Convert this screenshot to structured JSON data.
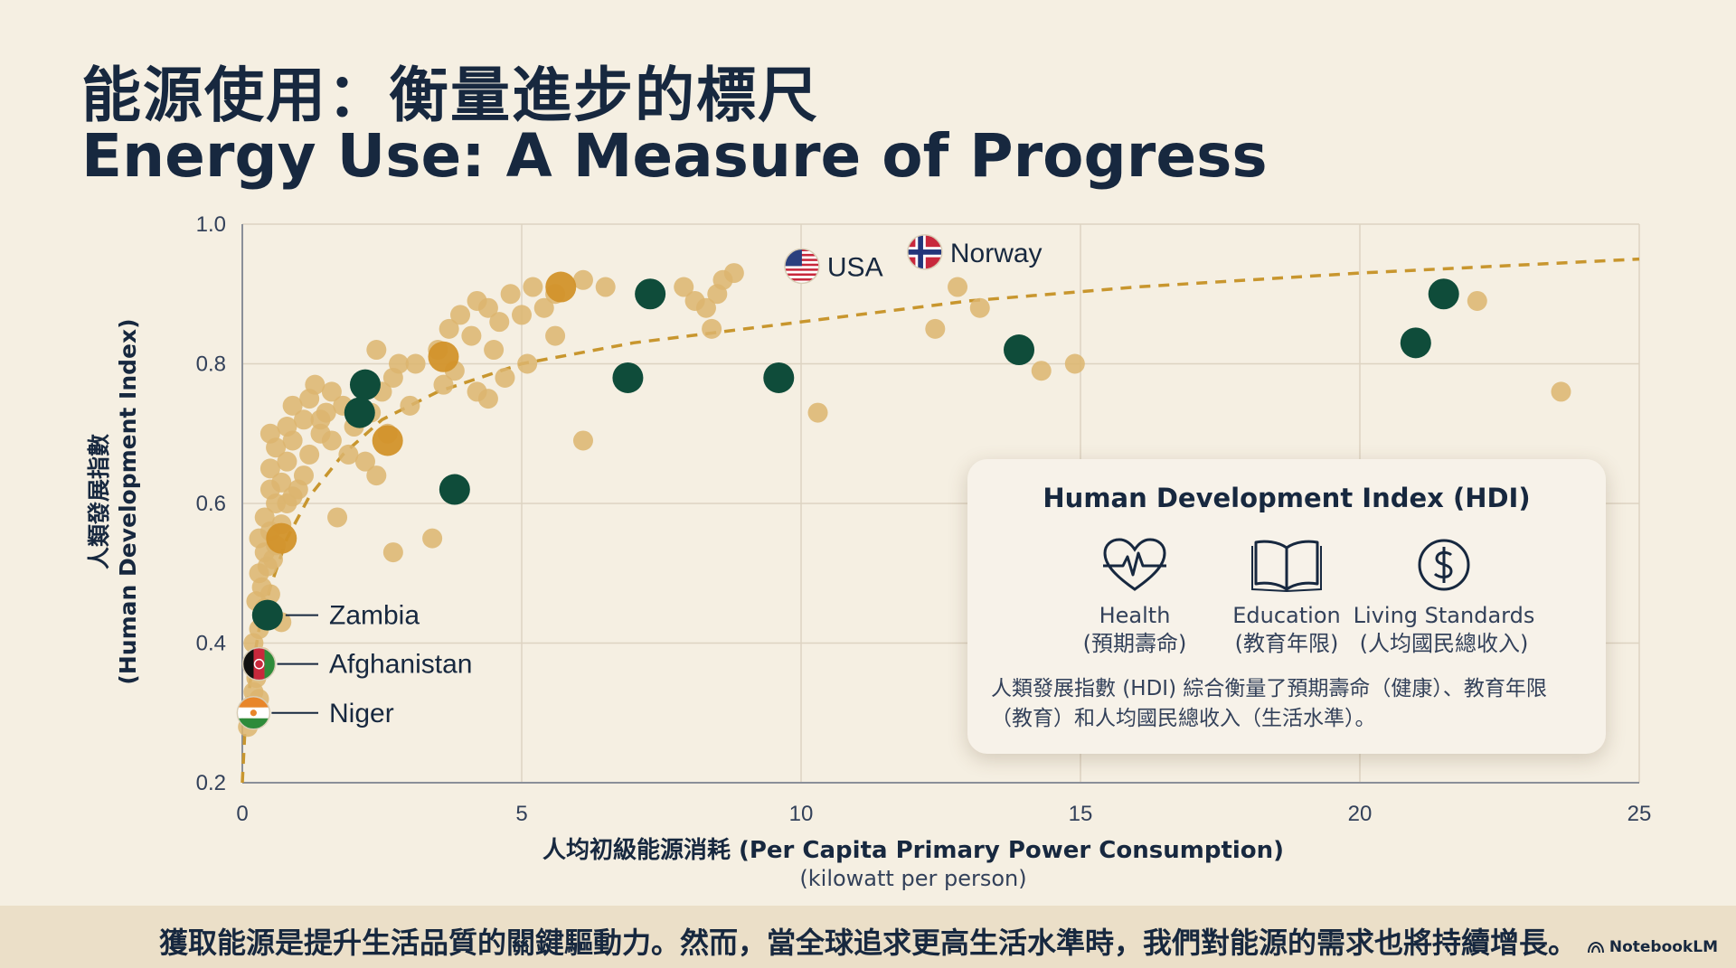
{
  "title": {
    "zh": "能源使用：衡量進步的標尺",
    "en": "Energy Use: A Measure of Progress"
  },
  "axes": {
    "xlabel": "人均初級能源消耗 (Per Capita Primary Power Consumption)",
    "xunit": "(kilowatt per person)",
    "ylabel_zh": "人類發展指數",
    "ylabel_en": "(Human Development Index)"
  },
  "hdi_box": {
    "title": "Human Development Index (HDI)",
    "items": [
      {
        "icon": "heart-pulse-icon",
        "label_en": "Health",
        "label_zh": "(預期壽命)"
      },
      {
        "icon": "book-icon",
        "label_en": "Education",
        "label_zh": "(教育年限)"
      },
      {
        "icon": "dollar-coin-icon",
        "label_en": "Living Standards",
        "label_zh": "(人均國民總收入)"
      }
    ],
    "description_line1": "人類發展指數 (HDI) 綜合衡量了預期壽命（健康）、教育年限",
    "description_line2": "（教育）和人均國民總收入（生活水準）。"
  },
  "footer": {
    "text": "獲取能源是提升生活品質的關鍵驅動力。然而，當全球追求更高生活水準時，我們對能源的需求也將持續增長。",
    "brand": "NotebookLM"
  },
  "colors": {
    "background": "#f5efe2",
    "point_light": "#dcb56f",
    "point_orange": "#d2922a",
    "point_green": "#0f4c3a",
    "trend": "#c8962e",
    "text": "#17283f",
    "footer_bg": "#ebdfc8"
  },
  "chart_data": {
    "type": "scatter",
    "title": "Energy Use: A Measure of Progress",
    "xlabel": "人均初級能源消耗 (Per Capita Primary Power Consumption)",
    "ylabel": "人類發展指數 (Human Development Index)",
    "xlim": [
      0,
      25
    ],
    "ylim": [
      0.2,
      1.0
    ],
    "xticks": [
      0,
      5,
      10,
      15,
      20,
      25
    ],
    "yticks": [
      0.2,
      0.4,
      0.6,
      0.8,
      1.0
    ],
    "yticklabels": [
      "0.2",
      "0.4",
      "0.6",
      "0.8",
      "1.0"
    ],
    "grid": true,
    "series": [
      {
        "name": "countries",
        "points": [
          [
            0.1,
            0.28
          ],
          [
            0.15,
            0.31
          ],
          [
            0.2,
            0.33
          ],
          [
            0.25,
            0.35
          ],
          [
            0.3,
            0.32
          ],
          [
            0.35,
            0.38
          ],
          [
            0.2,
            0.4
          ],
          [
            0.3,
            0.42
          ],
          [
            0.4,
            0.45
          ],
          [
            0.25,
            0.46
          ],
          [
            0.35,
            0.48
          ],
          [
            0.5,
            0.47
          ],
          [
            0.3,
            0.5
          ],
          [
            0.45,
            0.51
          ],
          [
            0.55,
            0.52
          ],
          [
            0.4,
            0.53
          ],
          [
            0.6,
            0.54
          ],
          [
            0.3,
            0.55
          ],
          [
            0.5,
            0.56
          ],
          [
            0.7,
            0.57
          ],
          [
            0.4,
            0.58
          ],
          [
            0.6,
            0.6
          ],
          [
            0.8,
            0.6
          ],
          [
            0.5,
            0.62
          ],
          [
            0.9,
            0.61
          ],
          [
            0.7,
            0.63
          ],
          [
            1.0,
            0.62
          ],
          [
            0.5,
            0.65
          ],
          [
            0.8,
            0.66
          ],
          [
            1.1,
            0.64
          ],
          [
            0.6,
            0.68
          ],
          [
            0.9,
            0.69
          ],
          [
            1.2,
            0.67
          ],
          [
            0.5,
            0.7
          ],
          [
            0.8,
            0.71
          ],
          [
            1.1,
            0.72
          ],
          [
            1.4,
            0.7
          ],
          [
            0.9,
            0.74
          ],
          [
            1.2,
            0.75
          ],
          [
            1.5,
            0.73
          ],
          [
            1.3,
            0.77
          ],
          [
            1.6,
            0.76
          ],
          [
            1.8,
            0.74
          ],
          [
            1.4,
            0.72
          ],
          [
            2.0,
            0.71
          ],
          [
            1.6,
            0.69
          ],
          [
            1.9,
            0.67
          ],
          [
            2.2,
            0.66
          ],
          [
            2.4,
            0.64
          ],
          [
            2.6,
            0.7
          ],
          [
            2.3,
            0.73
          ],
          [
            2.5,
            0.76
          ],
          [
            2.8,
            0.8
          ],
          [
            2.4,
            0.82
          ],
          [
            2.7,
            0.78
          ],
          [
            3.0,
            0.74
          ],
          [
            3.1,
            0.8
          ],
          [
            3.5,
            0.82
          ],
          [
            3.7,
            0.85
          ],
          [
            3.9,
            0.87
          ],
          [
            4.1,
            0.84
          ],
          [
            4.2,
            0.89
          ],
          [
            4.4,
            0.88
          ],
          [
            4.6,
            0.86
          ],
          [
            4.8,
            0.9
          ],
          [
            5.0,
            0.87
          ],
          [
            5.2,
            0.91
          ],
          [
            5.4,
            0.88
          ],
          [
            5.6,
            0.9
          ],
          [
            4.5,
            0.82
          ],
          [
            4.7,
            0.78
          ],
          [
            5.1,
            0.8
          ],
          [
            5.6,
            0.84
          ],
          [
            4.2,
            0.76
          ],
          [
            3.8,
            0.79
          ],
          [
            4.4,
            0.75
          ],
          [
            3.6,
            0.77
          ],
          [
            6.1,
            0.92
          ],
          [
            6.5,
            0.91
          ],
          [
            7.9,
            0.91
          ],
          [
            8.1,
            0.89
          ],
          [
            8.3,
            0.88
          ],
          [
            8.5,
            0.9
          ],
          [
            8.6,
            0.92
          ],
          [
            8.8,
            0.93
          ],
          [
            8.4,
            0.85
          ],
          [
            6.1,
            0.69
          ],
          [
            3.4,
            0.55
          ],
          [
            2.7,
            0.53
          ],
          [
            1.7,
            0.58
          ],
          [
            10.3,
            0.73
          ],
          [
            12.4,
            0.85
          ],
          [
            12.8,
            0.91
          ],
          [
            13.2,
            0.88
          ],
          [
            14.3,
            0.79
          ],
          [
            14.9,
            0.8
          ],
          [
            22.1,
            0.89
          ],
          [
            23.6,
            0.76
          ],
          [
            0.7,
            0.43
          ]
        ]
      },
      {
        "name": "highlighted-orange",
        "points": [
          [
            5.7,
            0.91
          ],
          [
            3.6,
            0.81
          ],
          [
            2.6,
            0.69
          ],
          [
            0.7,
            0.55
          ]
        ]
      },
      {
        "name": "highlighted-green",
        "points": [
          [
            7.3,
            0.9
          ],
          [
            2.2,
            0.77
          ],
          [
            2.1,
            0.73
          ],
          [
            6.9,
            0.78
          ],
          [
            9.6,
            0.78
          ],
          [
            3.8,
            0.62
          ],
          [
            13.9,
            0.82
          ],
          [
            21.5,
            0.9
          ],
          [
            21.0,
            0.83
          ],
          [
            0.45,
            0.44
          ]
        ]
      }
    ],
    "trend": {
      "name": "trend-line",
      "points": [
        [
          0,
          0.2
        ],
        [
          0.05,
          0.28
        ],
        [
          0.15,
          0.35
        ],
        [
          0.3,
          0.42
        ],
        [
          0.5,
          0.48
        ],
        [
          0.8,
          0.55
        ],
        [
          1.2,
          0.61
        ],
        [
          1.8,
          0.67
        ],
        [
          2.5,
          0.72
        ],
        [
          3.5,
          0.76
        ],
        [
          5,
          0.8
        ],
        [
          7,
          0.83
        ],
        [
          10,
          0.86
        ],
        [
          13,
          0.89
        ],
        [
          16,
          0.91
        ],
        [
          20,
          0.93
        ],
        [
          25,
          0.95
        ]
      ]
    },
    "annotations": [
      {
        "label": "Zambia",
        "x": 0.45,
        "y": 0.44,
        "kind": "leader"
      },
      {
        "label": "Afghanistan",
        "x": 0.3,
        "y": 0.37,
        "kind": "flag-leader",
        "flag": "afghanistan-flag-icon"
      },
      {
        "label": "Niger",
        "x": 0.2,
        "y": 0.3,
        "kind": "flag-leader",
        "flag": "niger-flag-icon"
      },
      {
        "label": "USA",
        "x": 10.5,
        "y": 0.94,
        "kind": "flag",
        "flag": "usa-flag-icon"
      },
      {
        "label": "Norway",
        "x": 12.7,
        "y": 0.96,
        "kind": "flag",
        "flag": "norway-flag-icon"
      }
    ]
  }
}
